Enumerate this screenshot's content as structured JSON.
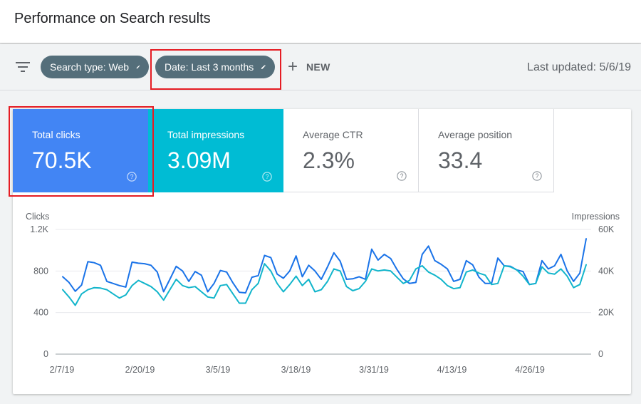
{
  "header": {
    "title": "Performance on Search results"
  },
  "filters": {
    "chips": [
      {
        "label": "Search type: Web"
      },
      {
        "label": "Date: Last 3 months"
      }
    ],
    "new_label": "NEW",
    "last_updated": "Last updated: 5/6/19"
  },
  "metrics": [
    {
      "label": "Total clicks",
      "value": "70.5K",
      "selected": true,
      "color": "#4285f4"
    },
    {
      "label": "Total impressions",
      "value": "3.09M",
      "selected": true,
      "color": "#00bcd4"
    },
    {
      "label": "Average CTR",
      "value": "2.3%",
      "selected": false
    },
    {
      "label": "Average position",
      "value": "33.4",
      "selected": false
    }
  ],
  "chart_data": {
    "type": "line",
    "ylabel_left": "Clicks",
    "ylabel_right": "Impressions",
    "y_left_ticks": [
      "0",
      "400",
      "800",
      "1.2K"
    ],
    "y_right_ticks": [
      "0",
      "20K",
      "40K",
      "60K"
    ],
    "ylim_left": [
      0,
      1200
    ],
    "ylim_right": [
      0,
      60000
    ],
    "x_ticks": [
      "2/7/19",
      "2/20/19",
      "3/5/19",
      "3/18/19",
      "3/31/19",
      "4/13/19",
      "4/26/19"
    ],
    "grid": true,
    "series": [
      {
        "name": "Clicks",
        "axis": "left",
        "color": "#1a73e8",
        "values": [
          745,
          690,
          605,
          665,
          890,
          880,
          855,
          700,
          680,
          660,
          645,
          885,
          875,
          870,
          855,
          790,
          600,
          720,
          845,
          800,
          700,
          795,
          760,
          600,
          680,
          805,
          790,
          685,
          595,
          590,
          740,
          755,
          950,
          930,
          770,
          730,
          800,
          945,
          745,
          855,
          800,
          720,
          840,
          975,
          895,
          720,
          725,
          745,
          720,
          1010,
          905,
          960,
          920,
          815,
          725,
          680,
          690,
          960,
          1040,
          900,
          865,
          820,
          700,
          720,
          900,
          860,
          740,
          680,
          680,
          925,
          850,
          845,
          810,
          795,
          670,
          680,
          900,
          820,
          850,
          960,
          800,
          700,
          780,
          1110
        ]
      },
      {
        "name": "Impressions",
        "axis": "right",
        "color": "#12b5cb",
        "values": [
          31000,
          27500,
          23500,
          29000,
          31000,
          32000,
          31800,
          31000,
          29000,
          27000,
          28500,
          33000,
          35500,
          34000,
          32500,
          30000,
          26000,
          31000,
          36000,
          33000,
          32000,
          32500,
          30000,
          27500,
          27000,
          33000,
          33500,
          29000,
          24500,
          24500,
          31000,
          34000,
          43500,
          40000,
          34000,
          30000,
          33500,
          37500,
          33000,
          36000,
          30000,
          31000,
          35000,
          41000,
          40000,
          32500,
          30500,
          31500,
          35000,
          41000,
          40000,
          40500,
          40000,
          37000,
          34000,
          35500,
          41000,
          42500,
          39500,
          38000,
          36000,
          33000,
          31500,
          32000,
          39500,
          40500,
          39000,
          38000,
          33500,
          34000,
          42500,
          42000,
          40500,
          37500,
          33500,
          34000,
          42000,
          39000,
          38500,
          41000,
          37500,
          32000,
          33500,
          43000
        ]
      }
    ]
  }
}
